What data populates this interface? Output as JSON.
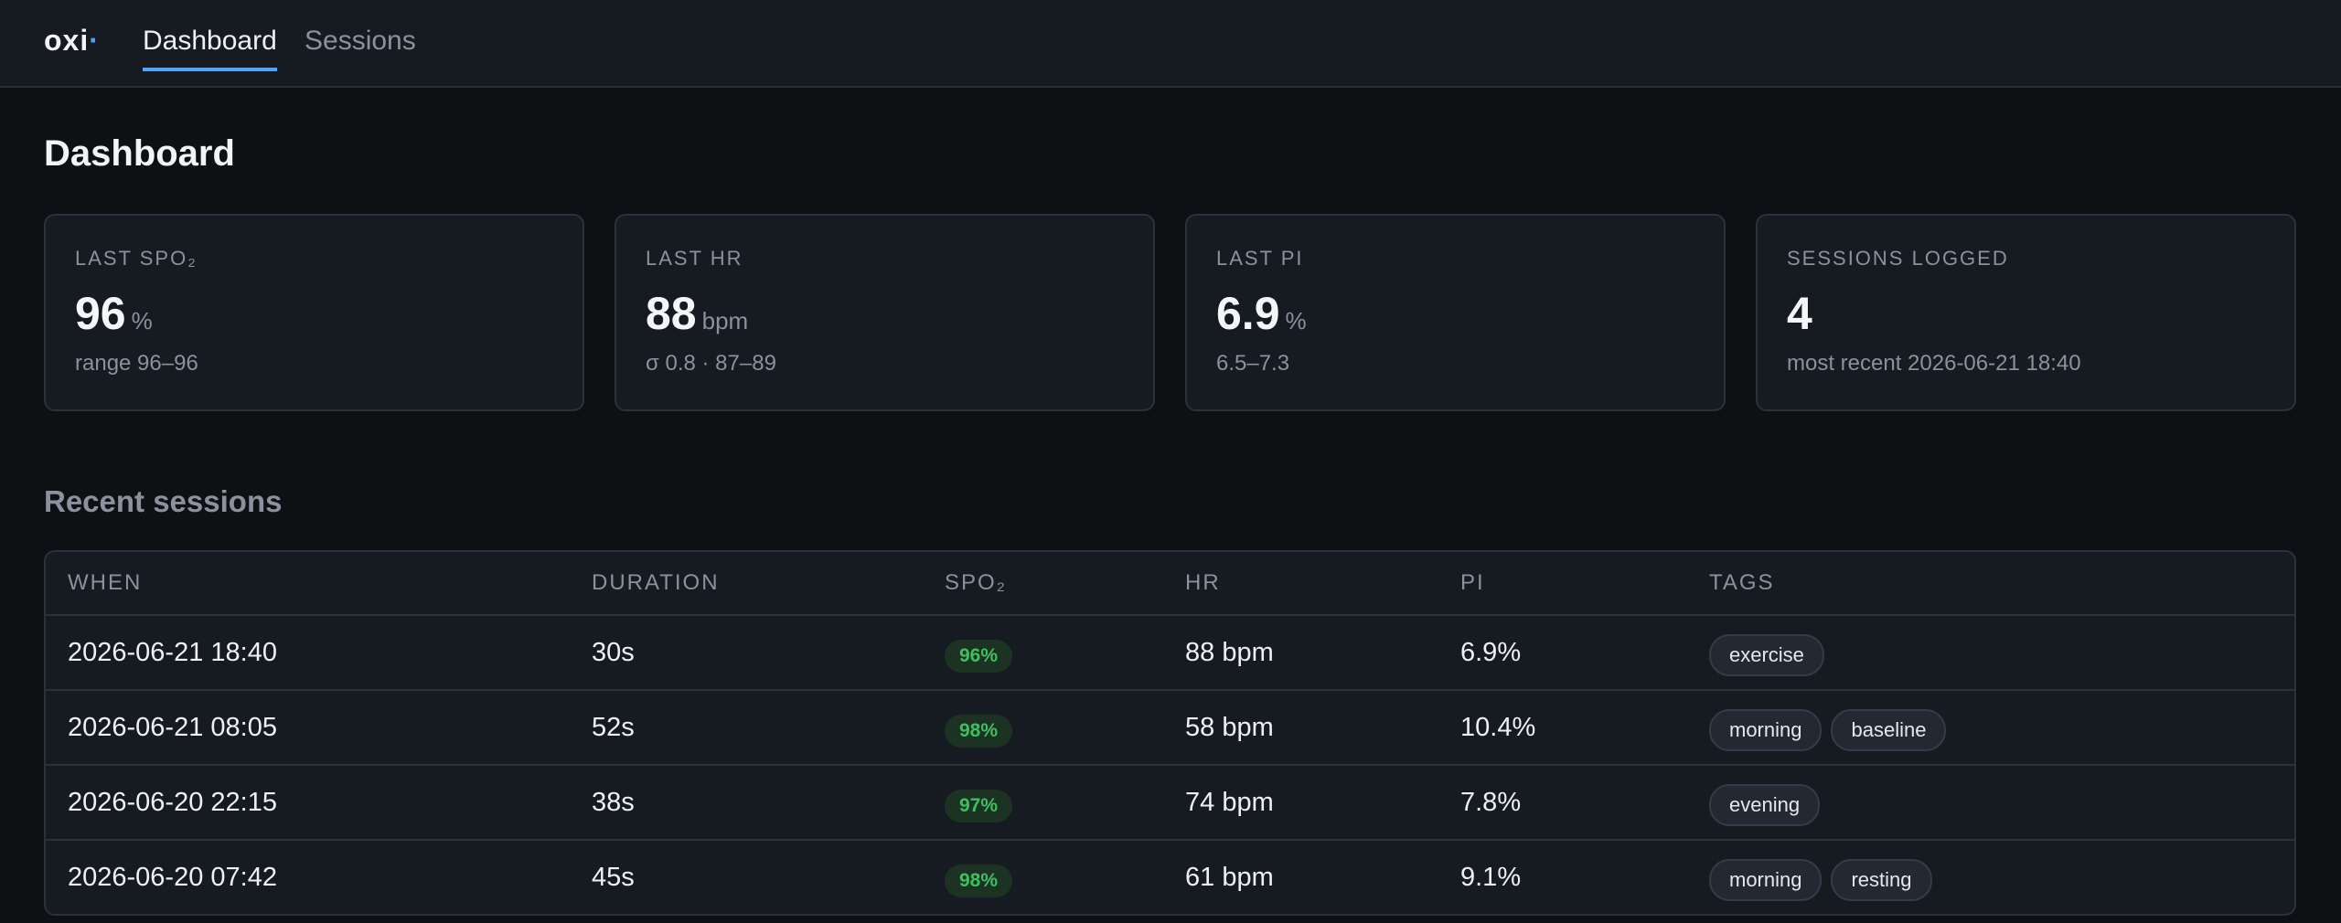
{
  "app": {
    "logo": "oxi",
    "logo_dot": "·"
  },
  "nav": {
    "tabs": [
      {
        "label": "Dashboard",
        "active": true
      },
      {
        "label": "Sessions",
        "active": false
      }
    ]
  },
  "page": {
    "title": "Dashboard",
    "recent_title": "Recent sessions"
  },
  "cards": [
    {
      "label": "LAST SPO₂",
      "value": "96",
      "unit": "%",
      "sub": "range 96–96"
    },
    {
      "label": "LAST HR",
      "value": "88",
      "unit": "bpm",
      "sub": "σ 0.8 · 87–89"
    },
    {
      "label": "LAST PI",
      "value": "6.9",
      "unit": "%",
      "sub": "6.5–7.3"
    },
    {
      "label": "SESSIONS LOGGED",
      "value": "4",
      "unit": "",
      "sub": "most recent 2026-06-21 18:40"
    }
  ],
  "table": {
    "headers": {
      "when": "WHEN",
      "duration": "DURATION",
      "spo2": "SPO₂",
      "hr": "HR",
      "pi": "PI",
      "tags": "TAGS"
    },
    "rows": [
      {
        "when": "2026-06-21 18:40",
        "duration": "30s",
        "spo2": "96%",
        "hr": "88 bpm",
        "pi": "6.9%",
        "tags": [
          "exercise"
        ]
      },
      {
        "when": "2026-06-21 08:05",
        "duration": "52s",
        "spo2": "98%",
        "hr": "58 bpm",
        "pi": "10.4%",
        "tags": [
          "morning",
          "baseline"
        ]
      },
      {
        "when": "2026-06-20 22:15",
        "duration": "38s",
        "spo2": "97%",
        "hr": "74 bpm",
        "pi": "7.8%",
        "tags": [
          "evening"
        ]
      },
      {
        "when": "2026-06-20 07:42",
        "duration": "45s",
        "spo2": "98%",
        "hr": "61 bpm",
        "pi": "9.1%",
        "tags": [
          "morning",
          "resting"
        ]
      }
    ]
  },
  "colors": {
    "accent": "#4ea3ff",
    "good": "#3fbf5f",
    "background": "#0e1014",
    "surface": "#161a21"
  }
}
